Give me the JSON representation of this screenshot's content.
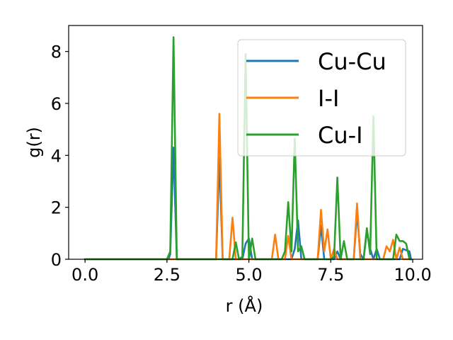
{
  "chart_data": {
    "type": "line",
    "title": "",
    "xlabel": "r (Å)",
    "ylabel": "g(r)",
    "xlim": [
      -0.5,
      10.3
    ],
    "ylim": [
      0,
      9
    ],
    "x_ticks": [
      0.0,
      2.5,
      5.0,
      7.5,
      10.0
    ],
    "x_tick_labels": [
      "0.0",
      "2.5",
      "5.0",
      "7.5",
      "10.0"
    ],
    "y_ticks": [
      0,
      2,
      4,
      6,
      8
    ],
    "y_tick_labels": [
      "0",
      "2",
      "4",
      "6",
      "8"
    ],
    "grid": false,
    "legend_position": "top-right",
    "series": [
      {
        "name": "Cu-Cu",
        "color": "#1f77b4",
        "points": [
          [
            0.0,
            0
          ],
          [
            2.55,
            0
          ],
          [
            2.6,
            0.2
          ],
          [
            2.7,
            4.3
          ],
          [
            2.8,
            0
          ],
          [
            4.0,
            0
          ],
          [
            4.1,
            3.9
          ],
          [
            4.2,
            0
          ],
          [
            4.8,
            0
          ],
          [
            4.9,
            0.6
          ],
          [
            5.0,
            0.8
          ],
          [
            5.1,
            0
          ],
          [
            6.3,
            0
          ],
          [
            6.4,
            0.4
          ],
          [
            6.5,
            1.5
          ],
          [
            6.6,
            0
          ],
          [
            7.1,
            0
          ],
          [
            7.2,
            1.3
          ],
          [
            7.3,
            0
          ],
          [
            7.6,
            0
          ],
          [
            7.7,
            0.3
          ],
          [
            7.8,
            0
          ],
          [
            8.2,
            0
          ],
          [
            8.3,
            1.8
          ],
          [
            8.4,
            0.2
          ],
          [
            8.5,
            0
          ],
          [
            8.6,
            1.1
          ],
          [
            8.7,
            0.4
          ],
          [
            8.8,
            0
          ],
          [
            8.9,
            0.4
          ],
          [
            9.0,
            0
          ],
          [
            9.6,
            0
          ],
          [
            9.7,
            0.4
          ],
          [
            9.8,
            0.35
          ],
          [
            9.9,
            0.3
          ],
          [
            9.95,
            0
          ]
        ]
      },
      {
        "name": "I-I",
        "color": "#ff7f0e",
        "points": [
          [
            0.0,
            0
          ],
          [
            4.0,
            0
          ],
          [
            4.1,
            5.6
          ],
          [
            4.2,
            0
          ],
          [
            4.4,
            0
          ],
          [
            4.5,
            1.6
          ],
          [
            4.6,
            0
          ],
          [
            5.7,
            0
          ],
          [
            5.8,
            0.95
          ],
          [
            5.9,
            0
          ],
          [
            6.1,
            0
          ],
          [
            6.2,
            0.9
          ],
          [
            6.3,
            0
          ],
          [
            7.1,
            0
          ],
          [
            7.2,
            1.9
          ],
          [
            7.3,
            0.3
          ],
          [
            7.4,
            1.15
          ],
          [
            7.5,
            0
          ],
          [
            7.6,
            0.4
          ],
          [
            7.7,
            0
          ],
          [
            8.2,
            0
          ],
          [
            8.3,
            2.15
          ],
          [
            8.4,
            0
          ],
          [
            9.1,
            0
          ],
          [
            9.2,
            0.5
          ],
          [
            9.3,
            0.3
          ],
          [
            9.4,
            0.75
          ],
          [
            9.5,
            0
          ],
          [
            9.6,
            0.45
          ],
          [
            9.7,
            0
          ],
          [
            9.95,
            0
          ]
        ]
      },
      {
        "name": "Cu-I",
        "color": "#2ca02c",
        "points": [
          [
            0.0,
            0
          ],
          [
            2.5,
            0
          ],
          [
            2.6,
            0.3
          ],
          [
            2.7,
            8.55
          ],
          [
            2.8,
            0
          ],
          [
            4.5,
            0
          ],
          [
            4.6,
            0.65
          ],
          [
            4.7,
            0
          ],
          [
            4.8,
            0.1
          ],
          [
            4.9,
            7.9
          ],
          [
            5.0,
            0
          ],
          [
            5.1,
            0.8
          ],
          [
            5.2,
            0
          ],
          [
            6.0,
            0
          ],
          [
            6.1,
            0.3
          ],
          [
            6.2,
            2.2
          ],
          [
            6.3,
            0.3
          ],
          [
            6.4,
            4.65
          ],
          [
            6.5,
            0.3
          ],
          [
            6.6,
            0.5
          ],
          [
            6.7,
            0
          ],
          [
            7.5,
            0
          ],
          [
            7.6,
            0.1
          ],
          [
            7.7,
            3.15
          ],
          [
            7.8,
            0
          ],
          [
            7.9,
            0.7
          ],
          [
            8.0,
            0
          ],
          [
            8.5,
            0
          ],
          [
            8.6,
            1.2
          ],
          [
            8.7,
            0.2
          ],
          [
            8.8,
            5.5
          ],
          [
            8.9,
            0
          ],
          [
            9.4,
            0
          ],
          [
            9.5,
            0.95
          ],
          [
            9.6,
            0.7
          ],
          [
            9.7,
            0.7
          ],
          [
            9.8,
            0.6
          ],
          [
            9.9,
            0
          ],
          [
            9.95,
            0
          ]
        ]
      }
    ]
  }
}
